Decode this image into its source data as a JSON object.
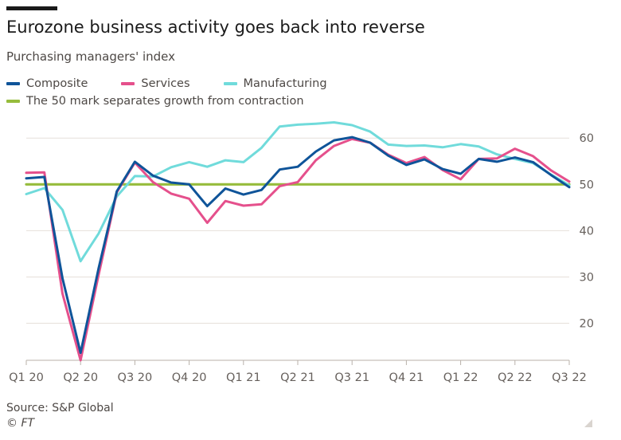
{
  "header": {
    "title": "Eurozone business activity goes back into reverse",
    "subtitle": "Purchasing managers' index"
  },
  "footer": {
    "source": "Source: S&P Global",
    "credit": "© FT"
  },
  "chart_data": {
    "type": "line",
    "title": "Eurozone business activity goes back into reverse",
    "subtitle": "Purchasing managers' index",
    "x_tick_labels": [
      "Q1 20",
      "Q2 20",
      "Q3 20",
      "Q4 20",
      "Q1 21",
      "Q2 21",
      "Q3 21",
      "Q4 21",
      "Q1 22",
      "Q2 22",
      "Q3 22"
    ],
    "x": [
      "2020-01",
      "2020-02",
      "2020-03",
      "2020-04",
      "2020-05",
      "2020-06",
      "2020-07",
      "2020-08",
      "2020-09",
      "2020-10",
      "2020-11",
      "2020-12",
      "2021-01",
      "2021-02",
      "2021-03",
      "2021-04",
      "2021-05",
      "2021-06",
      "2021-07",
      "2021-08",
      "2021-09",
      "2021-10",
      "2021-11",
      "2021-12",
      "2022-01",
      "2022-02",
      "2022-03",
      "2022-04",
      "2022-05",
      "2022-06",
      "2022-07"
    ],
    "y_ticks": [
      20,
      30,
      40,
      50,
      60
    ],
    "ylim": [
      12,
      64
    ],
    "grid": true,
    "legend_position": "top-left",
    "series": [
      {
        "name": "Composite",
        "color": "#0f5499",
        "values": [
          51.3,
          51.6,
          29.7,
          13.6,
          31.9,
          48.5,
          54.9,
          51.9,
          50.4,
          50.0,
          45.3,
          49.1,
          47.8,
          48.8,
          53.2,
          53.8,
          57.1,
          59.5,
          60.2,
          59.0,
          56.2,
          54.2,
          55.4,
          53.3,
          52.3,
          55.5,
          54.9,
          55.8,
          54.8,
          52.0,
          49.4
        ]
      },
      {
        "name": "Services",
        "color": "#e5508c",
        "values": [
          52.5,
          52.6,
          26.4,
          12.0,
          30.5,
          48.3,
          54.7,
          50.5,
          48.0,
          46.9,
          41.7,
          46.4,
          45.4,
          45.7,
          49.6,
          50.5,
          55.2,
          58.3,
          59.8,
          59.0,
          56.4,
          54.6,
          55.9,
          53.1,
          51.1,
          55.5,
          55.6,
          57.7,
          56.1,
          53.0,
          50.6
        ]
      },
      {
        "name": "Manufacturing",
        "color": "#70dbdb",
        "values": [
          47.9,
          49.2,
          44.5,
          33.4,
          39.4,
          47.4,
          51.8,
          51.7,
          53.7,
          54.8,
          53.8,
          55.2,
          54.8,
          57.9,
          62.5,
          62.9,
          63.1,
          63.4,
          62.8,
          61.4,
          58.6,
          58.3,
          58.4,
          58.0,
          58.7,
          58.2,
          56.5,
          55.5,
          54.6,
          52.1,
          49.8
        ]
      },
      {
        "name": "The 50 mark separates growth from contraction",
        "color": "#96bc3c",
        "values": [
          50,
          50,
          50,
          50,
          50,
          50,
          50,
          50,
          50,
          50,
          50,
          50,
          50,
          50,
          50,
          50,
          50,
          50,
          50,
          50,
          50,
          50,
          50,
          50,
          50,
          50,
          50,
          50,
          50,
          50,
          50
        ]
      }
    ]
  }
}
